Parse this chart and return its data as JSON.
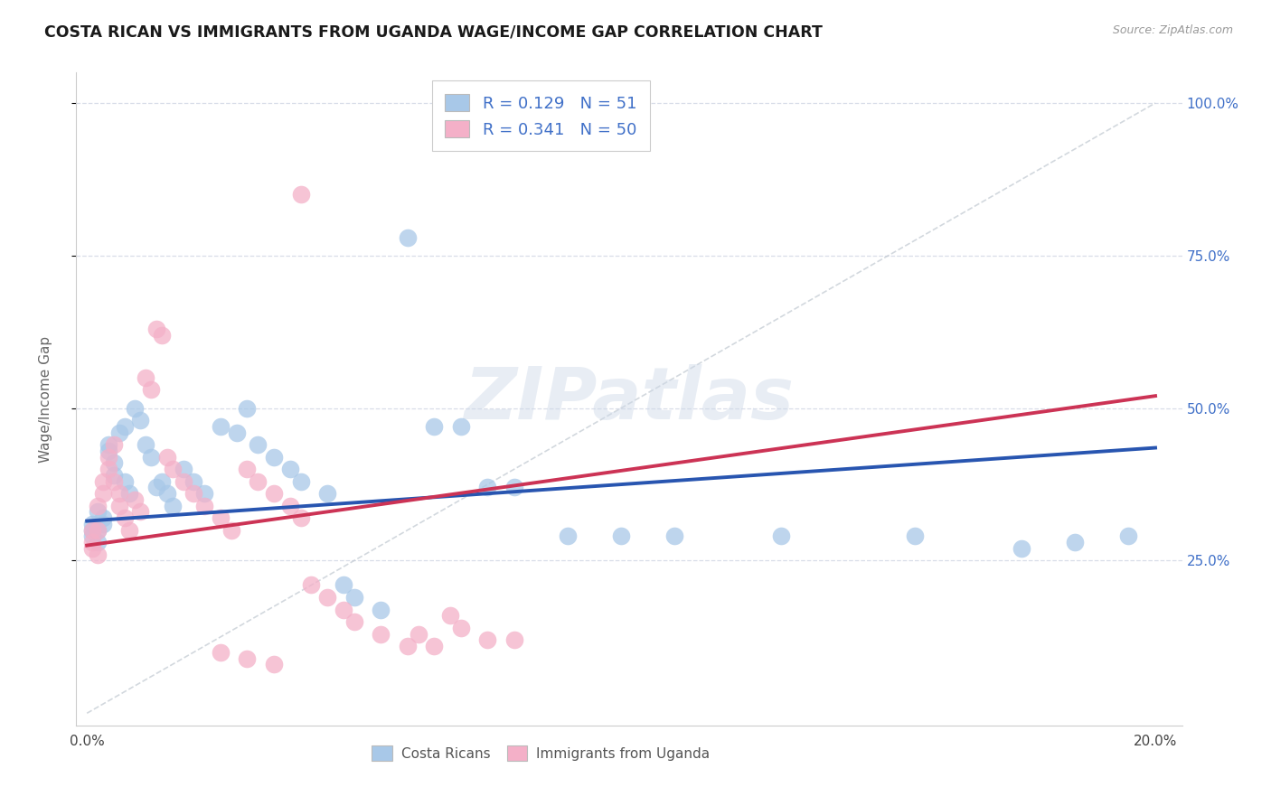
{
  "title": "COSTA RICAN VS IMMIGRANTS FROM UGANDA WAGE/INCOME GAP CORRELATION CHART",
  "source": "Source: ZipAtlas.com",
  "ylabel": "Wage/Income Gap",
  "watermark": "ZIPatlas",
  "legend_blue_label": "Costa Ricans",
  "legend_pink_label": "Immigrants from Uganda",
  "R_blue": 0.129,
  "N_blue": 51,
  "R_pink": 0.341,
  "N_pink": 50,
  "blue_scatter_color": "#a8c8e8",
  "pink_scatter_color": "#f4b0c8",
  "blue_line_color": "#2855b0",
  "pink_line_color": "#cc3355",
  "gray_dash_color": "#c0c8d0",
  "grid_color": "#d8dde8",
  "right_tick_color": "#4070c8",
  "blue_x": [
    0.001,
    0.001,
    0.001,
    0.002,
    0.002,
    0.002,
    0.003,
    0.003,
    0.004,
    0.004,
    0.005,
    0.005,
    0.006,
    0.007,
    0.007,
    0.008,
    0.009,
    0.01,
    0.011,
    0.012,
    0.013,
    0.014,
    0.015,
    0.016,
    0.018,
    0.02,
    0.022,
    0.025,
    0.028,
    0.03,
    0.032,
    0.035,
    0.038,
    0.04,
    0.045,
    0.048,
    0.05,
    0.055,
    0.06,
    0.065,
    0.07,
    0.075,
    0.08,
    0.09,
    0.1,
    0.11,
    0.13,
    0.155,
    0.175,
    0.185,
    0.195
  ],
  "blue_y": [
    0.3,
    0.31,
    0.29,
    0.33,
    0.3,
    0.28,
    0.32,
    0.31,
    0.43,
    0.44,
    0.41,
    0.39,
    0.46,
    0.47,
    0.38,
    0.36,
    0.5,
    0.48,
    0.44,
    0.42,
    0.37,
    0.38,
    0.36,
    0.34,
    0.4,
    0.38,
    0.36,
    0.47,
    0.46,
    0.5,
    0.44,
    0.42,
    0.4,
    0.38,
    0.36,
    0.21,
    0.19,
    0.17,
    0.78,
    0.47,
    0.47,
    0.37,
    0.37,
    0.29,
    0.29,
    0.29,
    0.29,
    0.29,
    0.27,
    0.28,
    0.29
  ],
  "pink_x": [
    0.001,
    0.001,
    0.001,
    0.002,
    0.002,
    0.002,
    0.003,
    0.003,
    0.004,
    0.004,
    0.005,
    0.005,
    0.006,
    0.006,
    0.007,
    0.008,
    0.009,
    0.01,
    0.011,
    0.012,
    0.013,
    0.014,
    0.015,
    0.016,
    0.018,
    0.02,
    0.022,
    0.025,
    0.027,
    0.03,
    0.032,
    0.035,
    0.038,
    0.04,
    0.042,
    0.045,
    0.048,
    0.05,
    0.055,
    0.06,
    0.062,
    0.065,
    0.068,
    0.07,
    0.075,
    0.08,
    0.025,
    0.03,
    0.035,
    0.04
  ],
  "pink_y": [
    0.28,
    0.3,
    0.27,
    0.34,
    0.3,
    0.26,
    0.38,
    0.36,
    0.4,
    0.42,
    0.44,
    0.38,
    0.36,
    0.34,
    0.32,
    0.3,
    0.35,
    0.33,
    0.55,
    0.53,
    0.63,
    0.62,
    0.42,
    0.4,
    0.38,
    0.36,
    0.34,
    0.32,
    0.3,
    0.4,
    0.38,
    0.36,
    0.34,
    0.32,
    0.21,
    0.19,
    0.17,
    0.15,
    0.13,
    0.11,
    0.13,
    0.11,
    0.16,
    0.14,
    0.12,
    0.12,
    0.1,
    0.09,
    0.08,
    0.85
  ],
  "blue_line_x0": 0.0,
  "blue_line_x1": 0.2,
  "blue_line_y0": 0.315,
  "blue_line_y1": 0.435,
  "pink_line_x0": 0.0,
  "pink_line_x1": 0.2,
  "pink_line_y0": 0.275,
  "pink_line_y1": 0.52,
  "dash_line_x0": 0.0,
  "dash_line_x1": 0.2,
  "dash_line_y0": 0.0,
  "dash_line_y1": 1.0,
  "xlim_min": -0.002,
  "xlim_max": 0.205,
  "ylim_min": -0.02,
  "ylim_max": 1.05,
  "xticks": [
    0.0,
    0.05,
    0.1,
    0.15,
    0.2
  ],
  "xticklabels": [
    "0.0%",
    "",
    "",
    "",
    "20.0%"
  ],
  "yticks_right": [
    0.25,
    0.5,
    0.75,
    1.0
  ],
  "yticklabels_right": [
    "25.0%",
    "50.0%",
    "75.0%",
    "100.0%"
  ]
}
